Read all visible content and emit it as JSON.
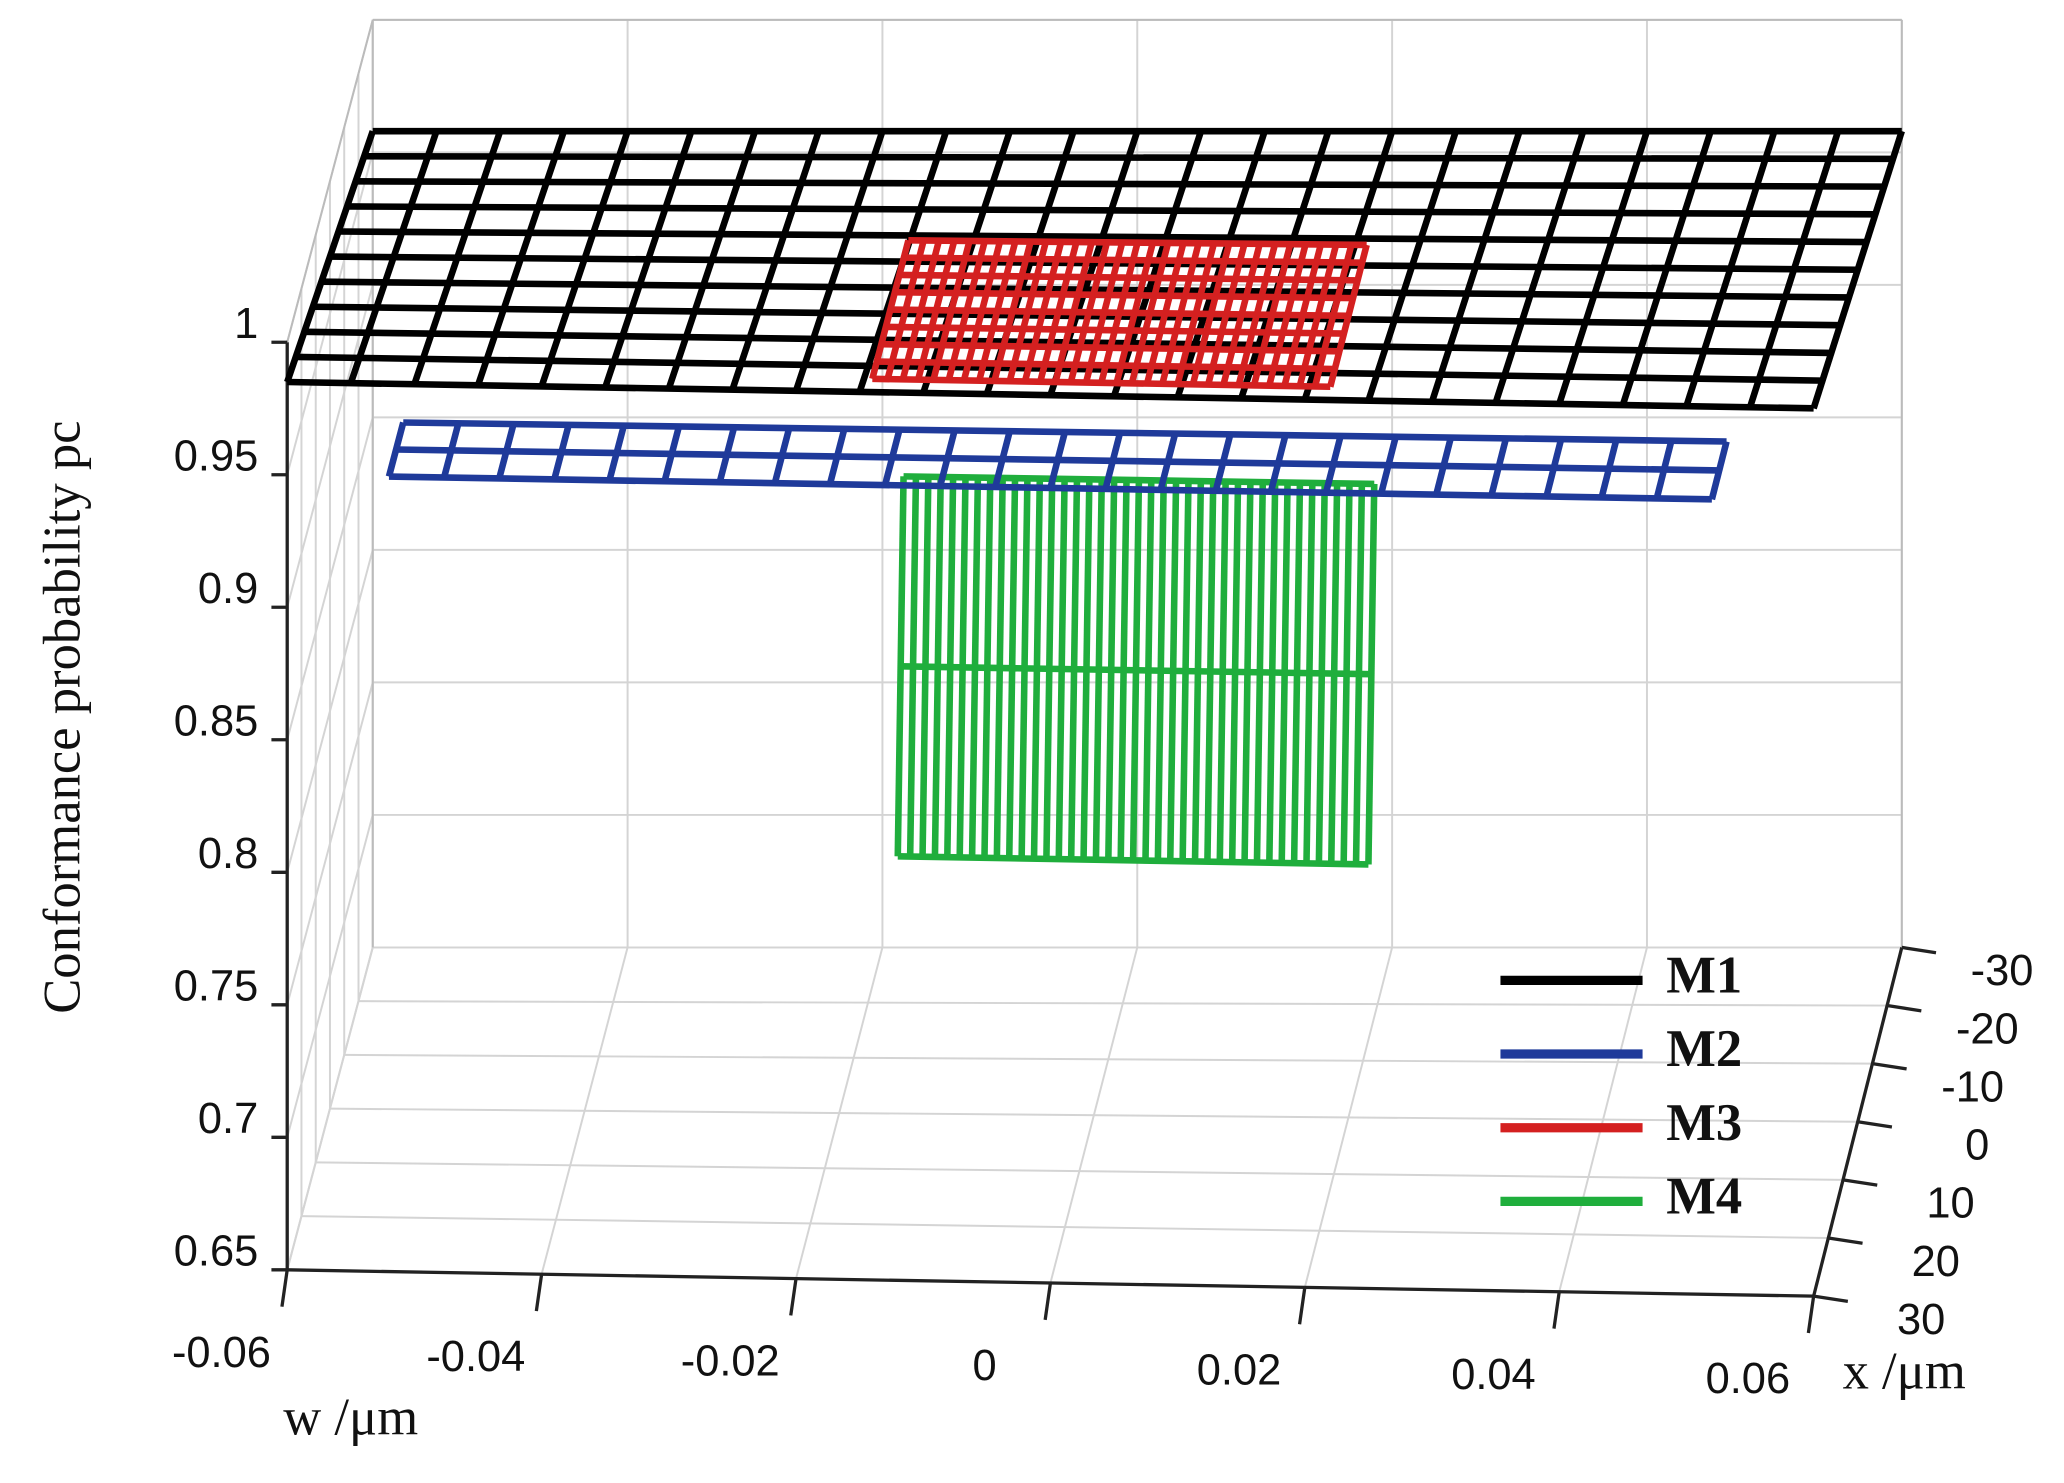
{
  "chart_data": {
    "type": "surface3d",
    "zlabel": "Conformance probability pc",
    "wlabel": "w /μm",
    "xlabel": "x /μm",
    "wlim": [
      -0.06,
      0.06
    ],
    "wticks": [
      -0.06,
      -0.04,
      -0.02,
      0,
      0.02,
      0.04,
      0.06
    ],
    "xlim": [
      -30,
      30
    ],
    "xticks": [
      -30,
      -20,
      -10,
      0,
      10,
      20,
      30
    ],
    "zlim": [
      0.65,
      1
    ],
    "zticks": [
      0.65,
      0.7,
      0.75,
      0.8,
      0.85,
      0.9,
      0.95,
      1
    ],
    "grid": true,
    "series": [
      {
        "name": "M1",
        "color": "#000000",
        "w": [
          -0.06,
          0.06
        ],
        "x": [
          -30,
          30
        ],
        "z": [
          [
            0.958,
            0.958
          ],
          [
            0.985,
            0.985
          ]
        ]
      },
      {
        "name": "M2",
        "color": "#1f3a9a",
        "w": [
          -0.052,
          0.052
        ],
        "x": [
          20,
          30
        ],
        "z": [
          [
            0.95,
            0.95
          ],
          [
            0.95,
            0.95
          ]
        ]
      },
      {
        "name": "M3",
        "color": "#d42020",
        "w": [
          -0.014,
          0.022
        ],
        "x": [
          5,
          30
        ],
        "z": [
          [
            0.99,
            0.99
          ],
          [
            0.99,
            0.99
          ]
        ]
      },
      {
        "name": "M4",
        "color": "#1fae3c",
        "w": [
          -0.012,
          0.025
        ],
        "x": [
          26,
          30
        ],
        "z": [
          [
            0.945,
            0.945
          ],
          [
            0.81,
            0.81
          ]
        ]
      }
    ]
  }
}
